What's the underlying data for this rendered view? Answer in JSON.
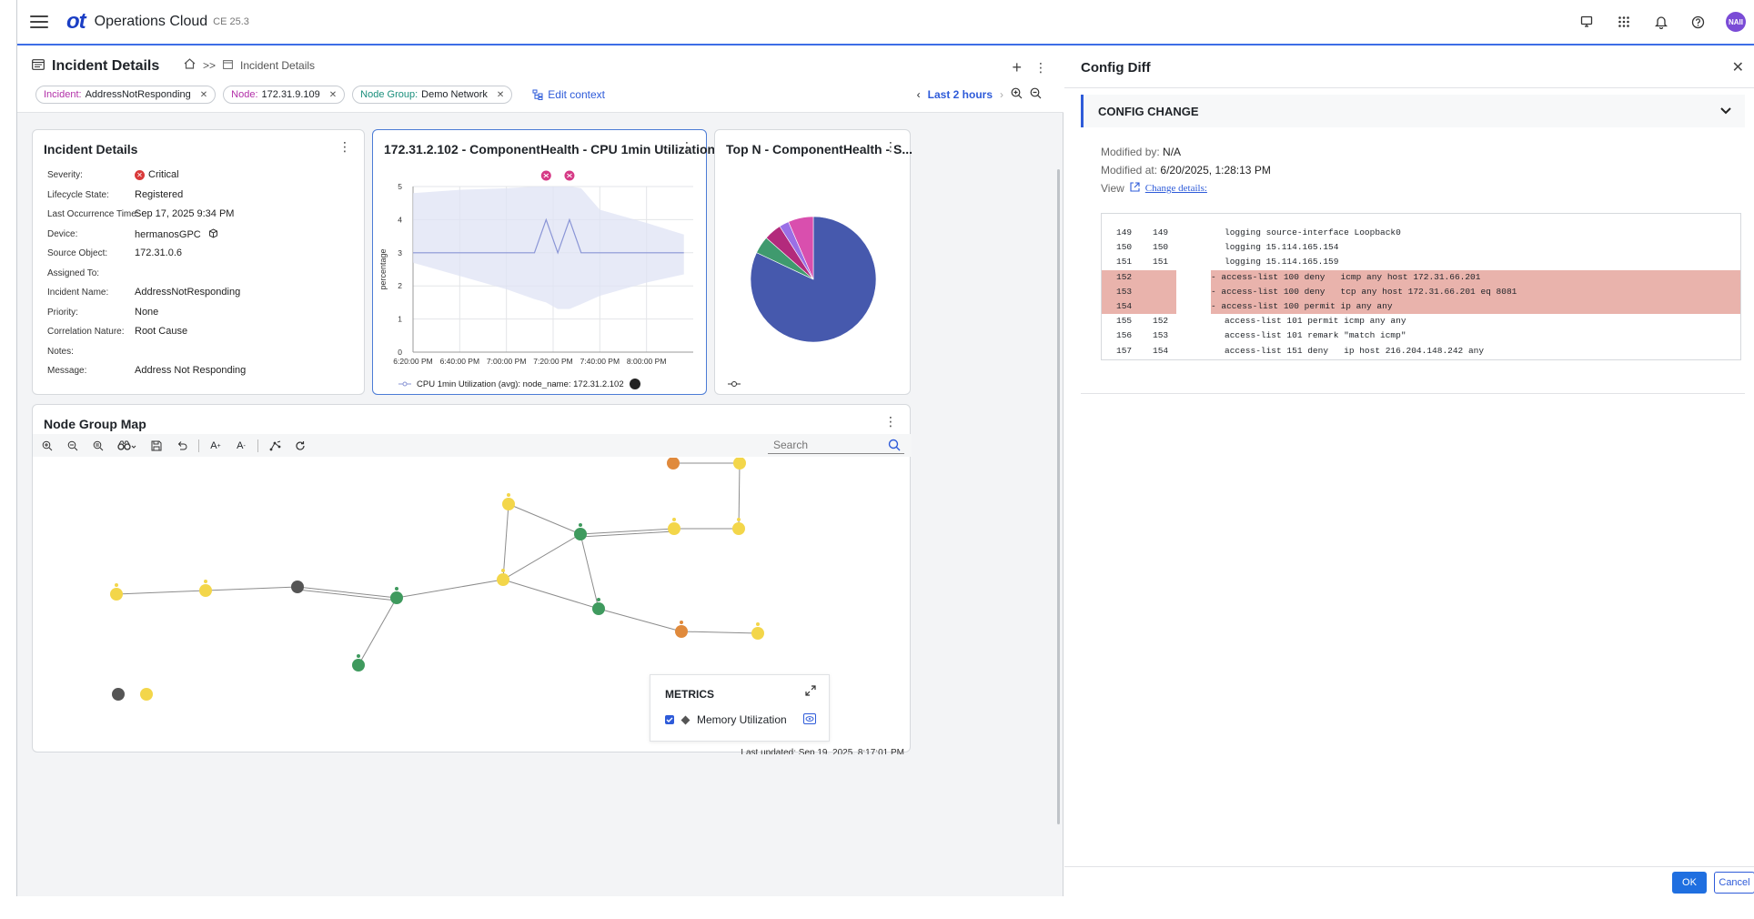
{
  "topbar": {
    "logo": "ot",
    "app_title": "Operations Cloud",
    "version": "CE 25.3",
    "icons": [
      "monitor-icon",
      "apps-grid-icon",
      "bell-icon",
      "help-icon"
    ],
    "avatar": "NAII"
  },
  "header": {
    "title": "Incident Details",
    "breadcrumb": {
      "separator": ">>",
      "current": "Incident Details"
    },
    "chips": [
      {
        "key": "Incident:",
        "value": "AddressNotResponding"
      },
      {
        "key": "Node:",
        "value": "172.31.9.109"
      },
      {
        "key": "Node Group:",
        "value": "Demo Network"
      }
    ],
    "edit_context": "Edit context",
    "time_range": "Last 2 hours"
  },
  "incident_details": {
    "title": "Incident Details",
    "fields": [
      {
        "label": "Severity:",
        "value": "Critical"
      },
      {
        "label": "Lifecycle State:",
        "value": "Registered"
      },
      {
        "label": "Last Occurrence Time:",
        "value": "Sep 17, 2025 9:34 PM"
      },
      {
        "label": "Device:",
        "value": "hermanosGPC"
      },
      {
        "label": "Source Object:",
        "value": "172.31.0.6"
      },
      {
        "label": "Assigned To:",
        "value": ""
      },
      {
        "label": "Incident Name:",
        "value": "AddressNotResponding"
      },
      {
        "label": "Priority:",
        "value": "None"
      },
      {
        "label": "Correlation Nature:",
        "value": "Root Cause"
      },
      {
        "label": "Notes:",
        "value": ""
      },
      {
        "label": "Message:",
        "value": "Address Not Responding"
      }
    ]
  },
  "cpu_card": {
    "title": "172.31.2.102 - ComponentHealth - CPU 1min Utilization (...",
    "legend": "CPU 1min Utilization (avg): node_name: 172.31.2.102"
  },
  "topn_card": {
    "title": "Top N - ComponentHealth - S...",
    "colors": {
      "big": "#4659ad",
      "pink": "#d94fae",
      "purple": "#9a6fe6",
      "magenta": "#b32a7c",
      "green": "#3f9a6e"
    }
  },
  "chart_data": [
    {
      "type": "line",
      "ylabel": "percentage",
      "ylim": [
        0,
        5
      ],
      "yticks": [
        0,
        1,
        2,
        3,
        4,
        5
      ],
      "x_tick_labels": [
        "6:20:00 PM",
        "6:40:00 PM",
        "7:00:00 PM",
        "7:20:00 PM",
        "7:40:00 PM",
        "8:00:00 PM"
      ],
      "x_minutes": [
        0,
        20,
        40,
        52,
        57,
        62,
        67,
        72,
        80,
        100,
        116
      ],
      "series": [
        {
          "values": [
            3,
            3,
            3,
            3,
            4,
            3,
            4,
            3,
            3,
            3,
            3
          ]
        }
      ],
      "band_upper": [
        4.8,
        4.9,
        4.95,
        5.0,
        5.0,
        5.0,
        5.0,
        4.95,
        4.3,
        3.9,
        3.55
      ],
      "band_lower": [
        2.7,
        2.3,
        1.9,
        1.6,
        1.5,
        1.3,
        1.3,
        1.45,
        1.7,
        2.1,
        2.35
      ],
      "anomaly_markers_x": [
        57,
        67
      ],
      "color": "#8a95d6"
    },
    {
      "type": "pie",
      "slices": [
        {
          "value": 82,
          "color": "#4659ad"
        },
        {
          "value": 4.5,
          "color": "#3f9a6e"
        },
        {
          "value": 4.5,
          "color": "#b32a7c"
        },
        {
          "value": 2.5,
          "color": "#9a6fe6"
        },
        {
          "value": 6.5,
          "color": "#d94fae"
        }
      ]
    }
  ],
  "node_map": {
    "title": "Node Group Map",
    "search_placeholder": "Search",
    "metrics_title": "METRICS",
    "metric_item": "Memory Utilization",
    "last_updated": "Last updated: Sep 19, 2025, 8:17:01 PM",
    "colors": {
      "yellow": "#f3d64a",
      "green": "#3f9a5e",
      "orange": "#e08a3c",
      "gray": "#555555"
    }
  },
  "config_diff": {
    "title": "Config Diff",
    "section": "CONFIG CHANGE",
    "modified_by_label": "Modified by:",
    "modified_by": "N/A",
    "modified_at_label": "Modified at:",
    "modified_at": "6/20/2025, 1:28:13 PM",
    "view_label": "View",
    "change_details": "Change details:",
    "lines": [
      {
        "a": "149",
        "b": "149",
        "text": "logging source-interface Loopback0",
        "removed": false
      },
      {
        "a": "150",
        "b": "150",
        "text": "logging 15.114.165.154",
        "removed": false
      },
      {
        "a": "151",
        "b": "151",
        "text": "logging 15.114.165.159",
        "removed": false
      },
      {
        "a": "152",
        "b": "",
        "text": "- access-list 100 deny   icmp any host 172.31.66.201",
        "removed": true
      },
      {
        "a": "153",
        "b": "",
        "text": "- access-list 100 deny   tcp any host 172.31.66.201 eq 8081",
        "removed": true
      },
      {
        "a": "154",
        "b": "",
        "text": "- access-list 100 permit ip any any",
        "removed": true
      },
      {
        "a": "155",
        "b": "152",
        "text": "access-list 101 permit icmp any any",
        "removed": false
      },
      {
        "a": "156",
        "b": "153",
        "text": "access-list 101 remark \"match icmp\"",
        "removed": false
      },
      {
        "a": "157",
        "b": "154",
        "text": "access-list 151 deny   ip host 216.204.148.242 any",
        "removed": false
      }
    ],
    "ok": "OK",
    "cancel": "Cancel"
  }
}
